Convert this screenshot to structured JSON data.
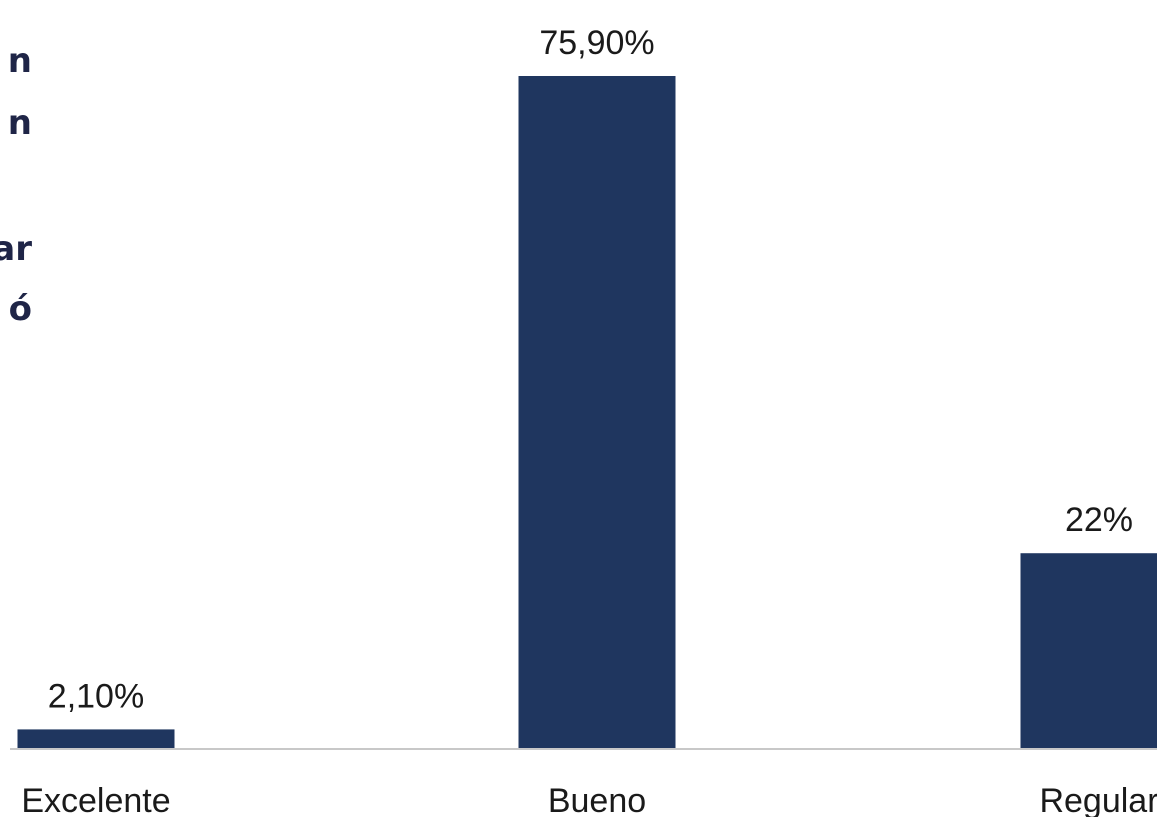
{
  "side_text": {
    "fragments": [
      "n",
      "n",
      "ar",
      "ó"
    ]
  },
  "chart_data": {
    "type": "bar",
    "categories": [
      "Excelente",
      "Bueno",
      "Regular"
    ],
    "values": [
      2.1,
      75.9,
      22
    ],
    "value_labels": [
      "2,10%",
      "75,90%",
      "22%"
    ],
    "title": "",
    "xlabel": "",
    "ylabel": "",
    "ylim": [
      0,
      80
    ],
    "grid": false,
    "legend": "none",
    "bar_color": "#1f365f",
    "axis_color": "#c8c8c8"
  }
}
